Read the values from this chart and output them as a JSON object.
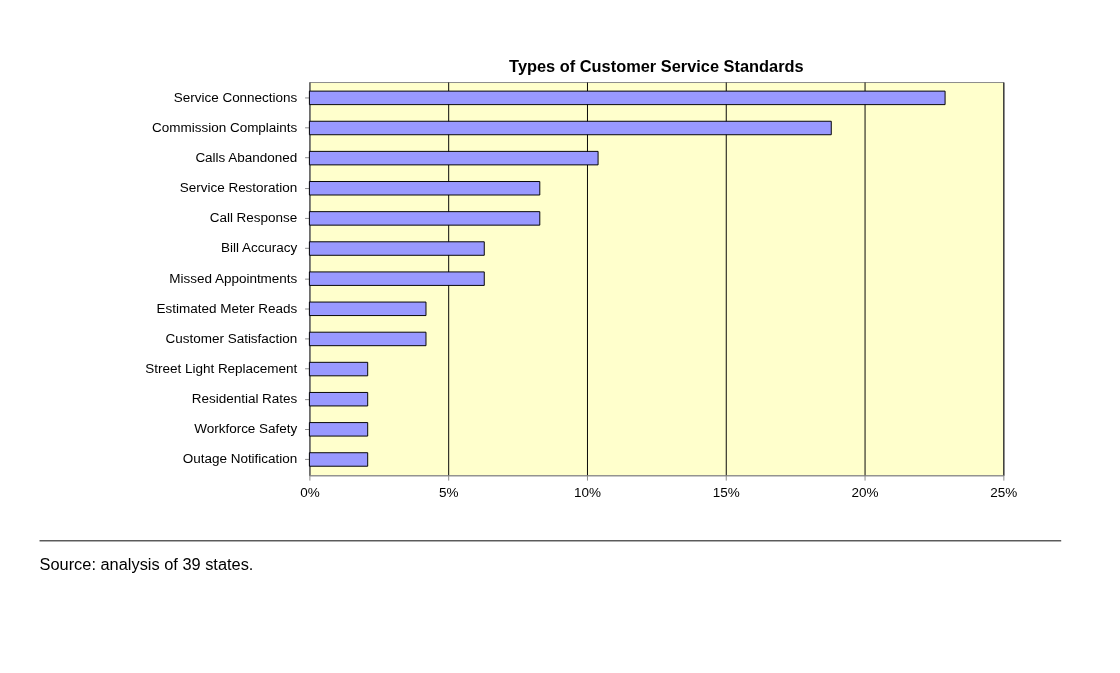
{
  "chart_data": {
    "type": "bar",
    "orientation": "horizontal",
    "title": "Types of Customer Service Standards",
    "categories": [
      "Service Connections",
      "Commission Complaints",
      "Calls Abandoned",
      "Service Restoration",
      "Call Response",
      "Bill Accuracy",
      "Missed Appointments",
      "Estimated Meter Reads",
      "Customer Satisfaction",
      "Street Light Replacement",
      "Residential Rates",
      "Workforce Safety",
      "Outage Notification"
    ],
    "values": [
      22.9,
      18.8,
      10.4,
      8.3,
      8.3,
      6.3,
      6.3,
      4.2,
      4.2,
      2.1,
      2.1,
      2.1,
      2.1
    ],
    "color": "#9999ff",
    "xlim": [
      0,
      25
    ],
    "xticks": [
      {
        "value": 0,
        "label": "0%"
      },
      {
        "value": 5,
        "label": "5%"
      },
      {
        "value": 10,
        "label": "10%"
      },
      {
        "value": 15,
        "label": "15%"
      },
      {
        "value": 20,
        "label": "20%"
      },
      {
        "value": 25,
        "label": "25%"
      }
    ],
    "grid": "x",
    "annotations": [
      "Source: analysis of 39 states."
    ]
  }
}
